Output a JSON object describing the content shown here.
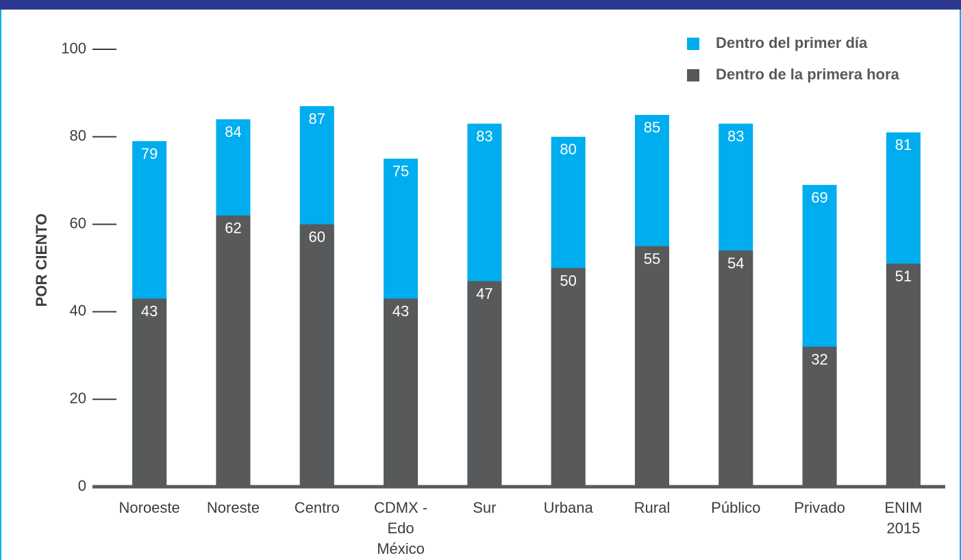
{
  "chart_data": {
    "type": "bar",
    "y_label": "POR CIENTO",
    "categories": [
      "Noroeste",
      "Noreste",
      "Centro",
      "CDMX - Edo México",
      "Sur",
      "Urbana",
      "Rural",
      "Público",
      "Privado",
      "ENIM 2015"
    ],
    "series": [
      {
        "name": "Dentro del primer día",
        "color": "#00adee",
        "values": [
          79,
          84,
          87,
          75,
          83,
          80,
          85,
          83,
          69,
          81
        ]
      },
      {
        "name": "Dentro de la primera hora",
        "color": "#58595b",
        "values": [
          43,
          62,
          60,
          43,
          47,
          50,
          55,
          54,
          32,
          51
        ]
      }
    ],
    "ylim": [
      0,
      100
    ],
    "yticks": [
      0,
      20,
      40,
      60,
      80,
      100
    ],
    "legend": "top-right"
  }
}
